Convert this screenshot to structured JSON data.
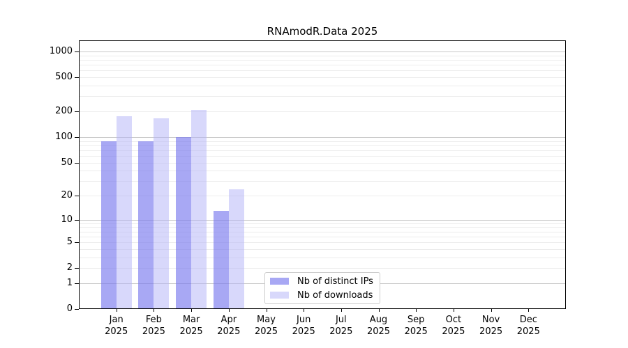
{
  "title": "RNAmodR.Data 2025",
  "legend": {
    "items": [
      {
        "label": "Nb of distinct IPs",
        "color": "rgba(121,121,238,0.65)"
      },
      {
        "label": "Nb of downloads",
        "color": "rgba(177,177,247,0.5)"
      }
    ],
    "position": "lower center"
  },
  "colors": {
    "bar_distinct_ips": "rgba(121,121,238,0.65)",
    "bar_downloads": "rgba(177,177,247,0.5)",
    "grid_minor": "#ececec",
    "grid_major": "#c9c9c9",
    "axis": "#000000",
    "background": "#ffffff"
  },
  "chart_data": {
    "type": "bar",
    "title": "RNAmodR.Data 2025",
    "categories": [
      "Jan",
      "Feb",
      "Mar",
      "Apr",
      "May",
      "Jun",
      "Jul",
      "Aug",
      "Sep",
      "Oct",
      "Nov",
      "Dec"
    ],
    "year": "2025",
    "series": [
      {
        "name": "Nb of distinct IPs",
        "values": [
          90,
          90,
          100,
          13,
          0,
          0,
          0,
          0,
          0,
          0,
          0,
          0
        ],
        "color": "rgba(121,121,238,0.65)"
      },
      {
        "name": "Nb of downloads",
        "values": [
          176,
          165,
          207,
          24,
          0,
          0,
          0,
          0,
          0,
          0,
          0,
          0
        ],
        "color": "rgba(177,177,247,0.5)"
      }
    ],
    "xlabel": "",
    "ylabel": "",
    "yscale": "log10(1+x)",
    "ylim": [
      0,
      1320
    ],
    "ytick_labels": [
      1000,
      500,
      200,
      100,
      50,
      20,
      10,
      5,
      2,
      1,
      0
    ],
    "major_gridlines": [
      1,
      10,
      100,
      1000
    ],
    "minor_gridlines": [
      2,
      3,
      4,
      5,
      6,
      7,
      8,
      9,
      20,
      30,
      40,
      50,
      60,
      70,
      80,
      90,
      200,
      300,
      400,
      500,
      600,
      700,
      800,
      900
    ],
    "grid": true,
    "legend_position": "lower center"
  }
}
